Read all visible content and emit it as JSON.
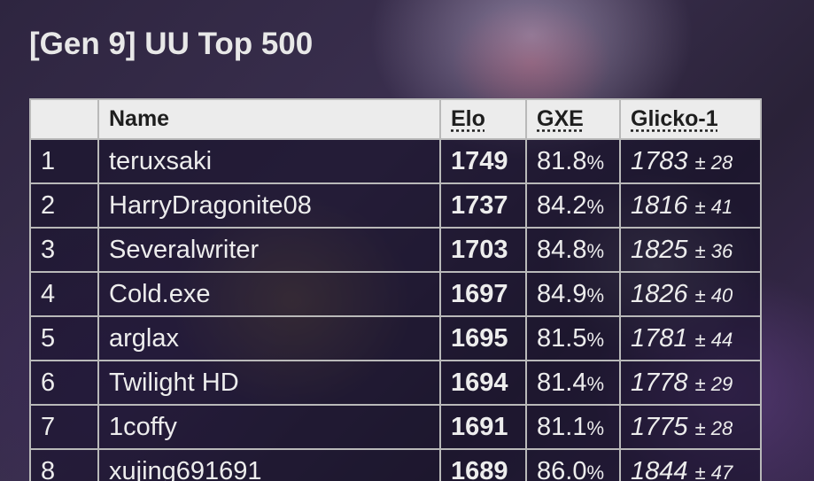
{
  "title": "[Gen 9] UU Top 500",
  "table": {
    "headers": {
      "rank": "",
      "name": "Name",
      "elo": "Elo",
      "gxe": "GXE",
      "glicko": "Glicko-1"
    },
    "rows": [
      {
        "rank": "1",
        "name": "teruxsaki",
        "elo": "1749",
        "gxe": "81.8",
        "glicko": "1783",
        "dev": "± 28"
      },
      {
        "rank": "2",
        "name": "HarryDragonite08",
        "elo": "1737",
        "gxe": "84.2",
        "glicko": "1816",
        "dev": "± 41"
      },
      {
        "rank": "3",
        "name": "Severalwriter",
        "elo": "1703",
        "gxe": "84.8",
        "glicko": "1825",
        "dev": "± 36"
      },
      {
        "rank": "4",
        "name": "Cold.exe",
        "elo": "1697",
        "gxe": "84.9",
        "glicko": "1826",
        "dev": "± 40"
      },
      {
        "rank": "5",
        "name": "arglax",
        "elo": "1695",
        "gxe": "81.5",
        "glicko": "1781",
        "dev": "± 44"
      },
      {
        "rank": "6",
        "name": "Twilight HD",
        "elo": "1694",
        "gxe": "81.4",
        "glicko": "1778",
        "dev": "± 29"
      },
      {
        "rank": "7",
        "name": "1coffy",
        "elo": "1691",
        "gxe": "81.1",
        "glicko": "1775",
        "dev": "± 28"
      },
      {
        "rank": "8",
        "name": "xujing691691",
        "elo": "1689",
        "gxe": "86.0",
        "glicko": "1844",
        "dev": "± 47"
      }
    ]
  },
  "percent_sign": "%",
  "colors": {
    "header_bg": "#ececec",
    "row_bg": "rgba(20,16,40,0.58)",
    "border": "#b9b9b9",
    "text": "#ededed"
  }
}
